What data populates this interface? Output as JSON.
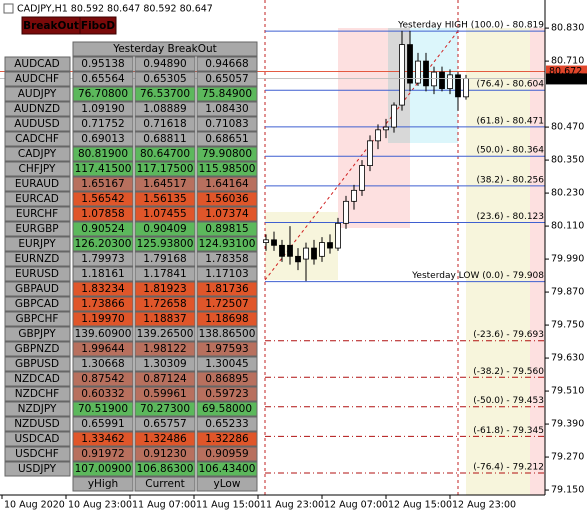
{
  "chart_data": {
    "type": "candlestick",
    "title": "CADJPY,H1  80.592 80.647 80.592 80.647",
    "categories": [
      "10 Aug 2020",
      null,
      null,
      null,
      null,
      null,
      null,
      null,
      "10 Aug 23:00",
      null,
      null,
      null,
      null,
      null,
      null,
      null,
      "11 Aug 07:00",
      null,
      null,
      null,
      null,
      null,
      null,
      null,
      "11 Aug 15:00",
      null,
      null,
      null,
      null,
      null,
      null,
      null,
      "11 Aug 23:00",
      null,
      null,
      null,
      null,
      null,
      null,
      null,
      "12 Aug 07:00",
      null,
      null,
      null,
      null,
      null,
      null,
      null,
      "12 Aug 15:00",
      null,
      null,
      null,
      null,
      null,
      null,
      null,
      "12 Aug 23:00",
      null,
      null,
      null
    ],
    "open": [
      null,
      null,
      null,
      null,
      null,
      null,
      null,
      null,
      null,
      null,
      null,
      null,
      null,
      null,
      null,
      null,
      null,
      null,
      null,
      null,
      null,
      null,
      null,
      null,
      null,
      null,
      null,
      null,
      null,
      null,
      null,
      null,
      null,
      80.05,
      80.06,
      80.04,
      80.04,
      80.0,
      79.99,
      80.03,
      80.0,
      80.05,
      80.03,
      80.12,
      80.2,
      80.24,
      80.33,
      80.42,
      80.46,
      80.47,
      80.55,
      80.77,
      80.63,
      80.71,
      80.62,
      80.67,
      80.61,
      80.66,
      80.58,
      null
    ],
    "high": [
      null,
      null,
      null,
      null,
      null,
      null,
      null,
      null,
      null,
      null,
      null,
      null,
      null,
      null,
      null,
      null,
      null,
      null,
      null,
      null,
      null,
      null,
      null,
      null,
      null,
      null,
      null,
      null,
      null,
      null,
      null,
      null,
      null,
      80.08,
      80.09,
      80.06,
      80.11,
      80.03,
      80.05,
      80.06,
      80.07,
      80.08,
      80.14,
      80.22,
      80.26,
      80.35,
      80.44,
      80.48,
      80.5,
      80.56,
      80.82,
      80.82,
      80.74,
      80.74,
      80.69,
      80.69,
      80.68,
      80.67,
      80.66,
      null
    ],
    "low": [
      null,
      null,
      null,
      null,
      null,
      null,
      null,
      null,
      null,
      null,
      null,
      null,
      null,
      null,
      null,
      null,
      null,
      null,
      null,
      null,
      null,
      null,
      null,
      null,
      null,
      null,
      null,
      null,
      null,
      null,
      null,
      null,
      null,
      80.02,
      80.02,
      79.98,
      79.97,
      79.95,
      79.91,
      79.97,
      79.98,
      80.01,
      80.02,
      80.1,
      80.17,
      80.22,
      80.31,
      80.39,
      80.43,
      80.45,
      80.53,
      80.6,
      80.62,
      80.6,
      80.59,
      80.6,
      80.59,
      80.53,
      80.57,
      null
    ],
    "close": [
      null,
      null,
      null,
      null,
      null,
      null,
      null,
      null,
      null,
      null,
      null,
      null,
      null,
      null,
      null,
      null,
      null,
      null,
      null,
      null,
      null,
      null,
      null,
      null,
      null,
      null,
      null,
      null,
      null,
      null,
      null,
      null,
      null,
      80.06,
      80.04,
      80.0,
      80.0,
      79.98,
      80.03,
      79.99,
      80.05,
      80.03,
      80.12,
      80.2,
      80.24,
      80.33,
      80.42,
      80.46,
      80.47,
      80.55,
      80.77,
      80.63,
      80.71,
      80.62,
      80.67,
      80.61,
      80.66,
      80.58,
      80.647,
      null
    ],
    "up_color": "#ffffff",
    "down_color": "#000000",
    "outline_color": "#000000",
    "ylim": [
      79.132,
      80.914
    ],
    "yticks": [
      {
        "value": 79.15,
        "label": "79.150"
      },
      {
        "value": 79.27,
        "label": "79.270"
      },
      {
        "value": 79.39,
        "label": "79.390"
      },
      {
        "value": 79.51,
        "label": "79.510"
      },
      {
        "value": 79.63,
        "label": "79.630"
      },
      {
        "value": 79.75,
        "label": "79.750"
      },
      {
        "value": 79.87,
        "label": "79.870"
      },
      {
        "value": 79.99,
        "label": "79.990"
      },
      {
        "value": 80.11,
        "label": "80.110"
      },
      {
        "value": 80.23,
        "label": "80.230"
      },
      {
        "value": 80.35,
        "label": "80.350"
      },
      {
        "value": 80.47,
        "label": "80.470"
      },
      {
        "value": 80.71,
        "label": "80.710"
      },
      {
        "value": 80.83,
        "label": "80.830"
      }
    ],
    "grid": false,
    "marker_line": {
      "value": 80.672,
      "label": "80.672",
      "color": "#e0452a"
    },
    "levels": [
      {
        "label": "Yesterday HIGH (100.0) - 80.819",
        "value": 80.819,
        "color": "#3f5fd0",
        "style": "solid"
      },
      {
        "label": "(76.4) - 80.604",
        "value": 80.604,
        "color": "#3f5fd0",
        "style": "solid"
      },
      {
        "label": "(61.8) - 80.471",
        "value": 80.471,
        "color": "#3f5fd0",
        "style": "solid"
      },
      {
        "label": "(50.0) - 80.364",
        "value": 80.364,
        "color": "#3f5fd0",
        "style": "solid"
      },
      {
        "label": "(38.2) - 80.256",
        "value": 80.256,
        "color": "#3f5fd0",
        "style": "solid"
      },
      {
        "label": "(23.6) - 80.123",
        "value": 80.123,
        "color": "#3f5fd0",
        "style": "solid"
      },
      {
        "label": "Yesterday LOW (0.0) - 79.908",
        "value": 79.908,
        "color": "#3f5fd0",
        "style": "solid"
      },
      {
        "label": "(-23.6) - 79.693",
        "value": 79.693,
        "color": "#b01010",
        "style": "dashdot"
      },
      {
        "label": "(-38.2) - 79.560",
        "value": 79.56,
        "color": "#b01010",
        "style": "dashdot"
      },
      {
        "label": "(-50.0) - 79.453",
        "value": 79.453,
        "color": "#b01010",
        "style": "dashdot"
      },
      {
        "label": "(-61.8) - 79.345",
        "value": 79.345,
        "color": "#b01010",
        "style": "dashdot"
      },
      {
        "label": "(-76.4) - 79.212",
        "value": 79.212,
        "color": "#b01010",
        "style": "dashdot"
      }
    ]
  },
  "buttons": [
    "BreakOut",
    "FiboD"
  ],
  "panel": {
    "header": "Yesterday BreakOut",
    "footer": [
      "yHigh",
      "Current",
      "yLow"
    ],
    "symbol_color": "#a8a8a8",
    "rows": [
      {
        "symbol": "AUDCAD",
        "values": [
          "0.95138",
          "0.94890",
          "0.94668"
        ],
        "color": "#a8a8a8"
      },
      {
        "symbol": "AUDCHF",
        "values": [
          "0.65564",
          "0.65305",
          "0.65057"
        ],
        "color": "#a8a8a8"
      },
      {
        "symbol": "AUDJPY",
        "values": [
          "76.70800",
          "76.53700",
          "75.84900"
        ],
        "color": "#5cb85c"
      },
      {
        "symbol": "AUDNZD",
        "values": [
          "1.09190",
          "1.08889",
          "1.08430"
        ],
        "color": "#a8a8a8"
      },
      {
        "symbol": "AUDUSD",
        "values": [
          "0.71752",
          "0.71618",
          "0.71083"
        ],
        "color": "#a8a8a8"
      },
      {
        "symbol": "CADCHF",
        "values": [
          "0.69013",
          "0.68811",
          "0.68651"
        ],
        "color": "#a8a8a8"
      },
      {
        "symbol": "CADJPY",
        "values": [
          "80.81900",
          "80.64700",
          "79.90800"
        ],
        "color": "#5cb85c"
      },
      {
        "symbol": "CHFJPY",
        "values": [
          "117.41500",
          "117.17500",
          "115.98500"
        ],
        "color": "#5cb85c"
      },
      {
        "symbol": "EURAUD",
        "values": [
          "1.65167",
          "1.64517",
          "1.64164"
        ],
        "color": "#b8705e"
      },
      {
        "symbol": "EURCAD",
        "values": [
          "1.56542",
          "1.56135",
          "1.56036"
        ],
        "color": "#e0562a"
      },
      {
        "symbol": "EURCHF",
        "values": [
          "1.07858",
          "1.07455",
          "1.07374"
        ],
        "color": "#e0562a"
      },
      {
        "symbol": "EURGBP",
        "values": [
          "0.90524",
          "0.90409",
          "0.89815"
        ],
        "color": "#5cb85c"
      },
      {
        "symbol": "EURJPY",
        "values": [
          "126.20300",
          "125.93800",
          "124.93100"
        ],
        "color": "#5cb85c"
      },
      {
        "symbol": "EURNZD",
        "values": [
          "1.79973",
          "1.79168",
          "1.78358"
        ],
        "color": "#a8a8a8"
      },
      {
        "symbol": "EURUSD",
        "values": [
          "1.18161",
          "1.17841",
          "1.17103"
        ],
        "color": "#a8a8a8"
      },
      {
        "symbol": "GBPAUD",
        "values": [
          "1.83234",
          "1.81923",
          "1.81736"
        ],
        "color": "#e0562a"
      },
      {
        "symbol": "GBPCAD",
        "values": [
          "1.73866",
          "1.72658",
          "1.72507"
        ],
        "color": "#e0562a"
      },
      {
        "symbol": "GBPCHF",
        "values": [
          "1.19970",
          "1.18837",
          "1.18698"
        ],
        "color": "#e0562a"
      },
      {
        "symbol": "GBPJPY",
        "values": [
          "139.60900",
          "139.26500",
          "138.86500"
        ],
        "color": "#a8a8a8"
      },
      {
        "symbol": "GBPNZD",
        "values": [
          "1.99644",
          "1.98122",
          "1.97593"
        ],
        "color": "#b8705e"
      },
      {
        "symbol": "GBPUSD",
        "values": [
          "1.30668",
          "1.30309",
          "1.30045"
        ],
        "color": "#a8a8a8"
      },
      {
        "symbol": "NZDCAD",
        "values": [
          "0.87542",
          "0.87124",
          "0.86895"
        ],
        "color": "#b8705e"
      },
      {
        "symbol": "NZDCHF",
        "values": [
          "0.60332",
          "0.59961",
          "0.59723"
        ],
        "color": "#b8705e"
      },
      {
        "symbol": "NZDJPY",
        "values": [
          "70.51900",
          "70.27300",
          "69.58000"
        ],
        "color": "#5cb85c"
      },
      {
        "symbol": "NZDUSD",
        "values": [
          "0.65991",
          "0.65757",
          "0.65233"
        ],
        "color": "#a8a8a8"
      },
      {
        "symbol": "USDCAD",
        "values": [
          "1.33462",
          "1.32486",
          "1.32286"
        ],
        "color": "#e0562a"
      },
      {
        "symbol": "USDCHF",
        "values": [
          "0.91972",
          "0.91230",
          "0.90959"
        ],
        "color": "#b8705e"
      },
      {
        "symbol": "USDJPY",
        "values": [
          "107.00900",
          "106.86300",
          "106.43400"
        ],
        "color": "#5cb85c"
      }
    ]
  }
}
